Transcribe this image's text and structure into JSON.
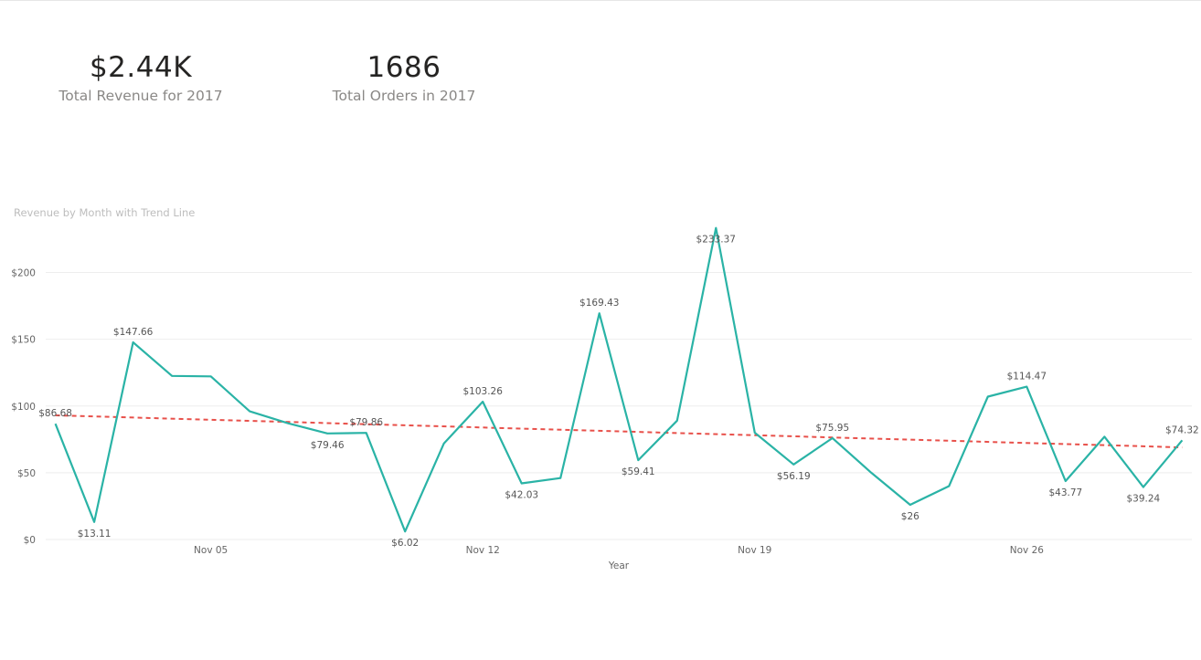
{
  "kpis": {
    "revenue": {
      "value": "$2.44K",
      "label": "Total Revenue for 2017"
    },
    "orders": {
      "value": "1686",
      "label": "Total Orders in 2017"
    }
  },
  "colors": {
    "line": "#2ab3a6",
    "trend": "#e8504a",
    "grid": "#eeeeee"
  },
  "chart_data": {
    "type": "line",
    "title": "Revenue by Month with Trend Line",
    "xlabel": "Year",
    "ylabel": "",
    "x_start": "2017-11-01",
    "x_ticks": [
      {
        "label": "Nov 05",
        "day": 5
      },
      {
        "label": "Nov 12",
        "day": 12
      },
      {
        "label": "Nov 19",
        "day": 19
      },
      {
        "label": "Nov 26",
        "day": 26
      }
    ],
    "y_ticks": [
      {
        "label": "$0",
        "value": 0
      },
      {
        "label": "$50",
        "value": 50
      },
      {
        "label": "$100",
        "value": 100
      },
      {
        "label": "$150",
        "value": 150
      },
      {
        "label": "$200",
        "value": 200
      }
    ],
    "ylim": [
      0,
      240
    ],
    "xlim": [
      0.75,
      30.25
    ],
    "grid": true,
    "legend": "none",
    "series": [
      {
        "values": [
          {
            "day": 1,
            "value": 86.68,
            "label": "$86.68",
            "pos": "above"
          },
          {
            "day": 2,
            "value": 13.11,
            "label": "$13.11",
            "pos": "below"
          },
          {
            "day": 3,
            "value": 147.66,
            "label": "$147.66",
            "pos": "above"
          },
          {
            "day": 4,
            "value": 122.5
          },
          {
            "day": 5,
            "value": 122.2
          },
          {
            "day": 6,
            "value": 96
          },
          {
            "day": 7,
            "value": 87
          },
          {
            "day": 8,
            "value": 79.46,
            "label": "$79.46",
            "pos": "below"
          },
          {
            "day": 9,
            "value": 79.86,
            "label": "$79.86",
            "pos": "above"
          },
          {
            "day": 10,
            "value": 6.02,
            "label": "$6.02",
            "pos": "below"
          },
          {
            "day": 11,
            "value": 72
          },
          {
            "day": 12,
            "value": 103.26,
            "label": "$103.26",
            "pos": "above"
          },
          {
            "day": 13,
            "value": 42.03,
            "label": "$42.03",
            "pos": "below"
          },
          {
            "day": 14,
            "value": 46
          },
          {
            "day": 15,
            "value": 169.43,
            "label": "$169.43",
            "pos": "above"
          },
          {
            "day": 16,
            "value": 59.41,
            "label": "$59.41",
            "pos": "below"
          },
          {
            "day": 17,
            "value": 89
          },
          {
            "day": 18,
            "value": 233.37,
            "label": "$233.37",
            "pos": "below"
          },
          {
            "day": 19,
            "value": 80
          },
          {
            "day": 20,
            "value": 56.19,
            "label": "$56.19",
            "pos": "below"
          },
          {
            "day": 21,
            "value": 75.95,
            "label": "$75.95",
            "pos": "above"
          },
          {
            "day": 22,
            "value": 50
          },
          {
            "day": 23,
            "value": 26,
            "label": "$26",
            "pos": "below"
          },
          {
            "day": 24,
            "value": 40
          },
          {
            "day": 25,
            "value": 107
          },
          {
            "day": 26,
            "value": 114.47,
            "label": "$114.47",
            "pos": "above"
          },
          {
            "day": 27,
            "value": 43.77,
            "label": "$43.77",
            "pos": "below"
          },
          {
            "day": 28,
            "value": 77
          },
          {
            "day": 29,
            "value": 39.24,
            "label": "$39.24",
            "pos": "below"
          },
          {
            "day": 30,
            "value": 74.32,
            "label": "$74.32",
            "pos": "above"
          }
        ]
      }
    ],
    "trend_line": {
      "start": {
        "day": 1,
        "value": 93
      },
      "end": {
        "day": 30,
        "value": 69
      }
    }
  }
}
